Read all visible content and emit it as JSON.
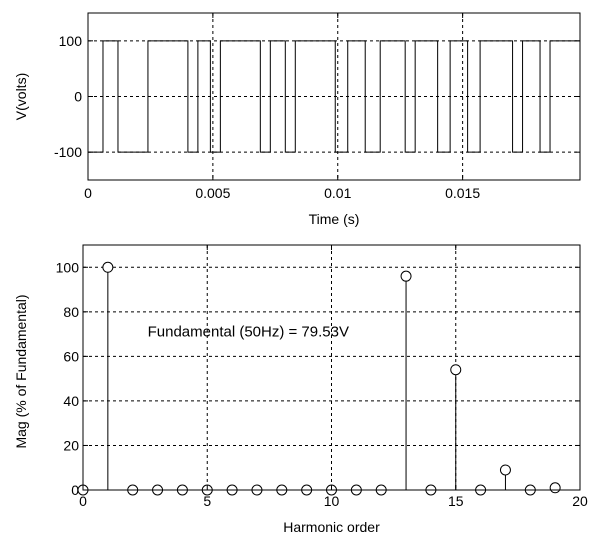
{
  "chart_data": [
    {
      "type": "line",
      "xlabel": "Time (s)",
      "ylabel": "V(volts)",
      "xlim": [
        0,
        0.0197
      ],
      "ylim": [
        -150,
        150
      ],
      "xticks": [
        0,
        0.005,
        0.01,
        0.015
      ],
      "xtick_labels": [
        "0",
        "0.005",
        "0.01",
        "0.015"
      ],
      "yticks": [
        -100,
        0,
        100
      ],
      "ytick_labels": [
        "-100",
        "0",
        "100"
      ],
      "grid": true,
      "series": [
        {
          "high_intervals": [
            [
              0.0006,
              0.0012
            ],
            [
              0.0024,
              0.004
            ],
            [
              0.0044,
              0.0049
            ],
            [
              0.0053,
              0.0069
            ],
            [
              0.0073,
              0.0079
            ],
            [
              0.0083,
              0.0099
            ],
            [
              0.0104,
              0.0111
            ],
            [
              0.0117,
              0.0127
            ],
            [
              0.0131,
              0.014
            ],
            [
              0.0145,
              0.0152
            ],
            [
              0.0157,
              0.017
            ],
            [
              0.0174,
              0.0181
            ],
            [
              0.0185,
              0.0197
            ]
          ],
          "high_value": 100,
          "low_value": -100
        }
      ]
    },
    {
      "type": "scatter",
      "xlabel": "Harmonic order",
      "ylabel": "Mag (% of Fundamental)",
      "xlim": [
        0,
        20
      ],
      "ylim": [
        0,
        110
      ],
      "xticks": [
        0,
        5,
        10,
        15,
        20
      ],
      "xtick_labels": [
        "0",
        "5",
        "10",
        "15",
        "20"
      ],
      "yticks": [
        0,
        20,
        40,
        60,
        80,
        100
      ],
      "ytick_labels": [
        "0",
        "20",
        "40",
        "60",
        "80",
        "100"
      ],
      "grid": true,
      "annotation": "Fundamental (50Hz) = 79.53V",
      "series": [
        {
          "x": [
            0,
            1,
            2,
            3,
            4,
            5,
            6,
            7,
            8,
            9,
            10,
            11,
            12,
            13,
            14,
            15,
            16,
            17,
            18,
            19
          ],
          "y": [
            0,
            100,
            0,
            0,
            0,
            0,
            0,
            0,
            0,
            0,
            0,
            0,
            0,
            96,
            0,
            54,
            0,
            9,
            0,
            1
          ]
        }
      ]
    }
  ]
}
